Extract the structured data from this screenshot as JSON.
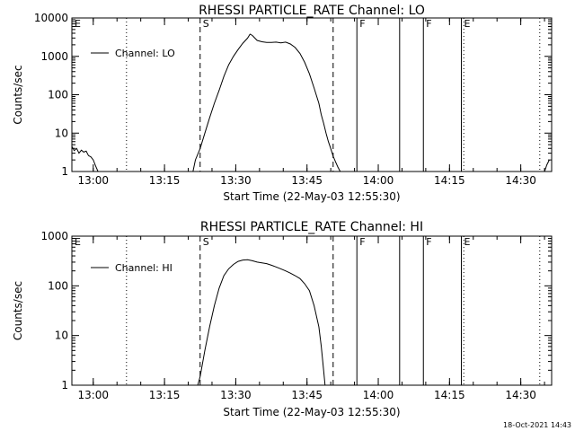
{
  "timestamp": "18-Oct-2021 14:43",
  "chart_data": [
    {
      "type": "line",
      "title": "RHESSI PARTICLE_RATE Channel: LO",
      "ylabel": "Counts/sec",
      "xlabel": "Start Time (22-May-03 12:55:30)",
      "y_scale": "log",
      "ylim": [
        1,
        10000
      ],
      "xlim_minutes_after_start": [
        0,
        101
      ],
      "x_ticks": [
        "13:00",
        "13:15",
        "13:30",
        "13:45",
        "14:00",
        "14:15",
        "14:30"
      ],
      "y_ticks": [
        "1",
        "10",
        "100",
        "1000",
        "10000"
      ],
      "legend": {
        "entries": [
          "Channel: LO"
        ],
        "placement": "top-left"
      },
      "series": [
        {
          "name": "Channel: LO",
          "segments": [
            [
              [
                0,
                4.5
              ],
              [
                0.5,
                3.5
              ],
              [
                1,
                4
              ],
              [
                1.5,
                3
              ],
              [
                2,
                3.6
              ],
              [
                2.5,
                3.2
              ],
              [
                3,
                3.4
              ],
              [
                3.5,
                2.6
              ],
              [
                4,
                2.4
              ],
              [
                4.5,
                2.0
              ],
              [
                5,
                1.4
              ],
              [
                5.5,
                1
              ]
            ],
            [
              [
                25.5,
                1
              ],
              [
                26,
                2
              ],
              [
                27,
                4
              ],
              [
                28,
                10
              ],
              [
                29,
                25
              ],
              [
                30,
                60
              ],
              [
                31,
                130
              ],
              [
                32,
                300
              ],
              [
                33,
                600
              ],
              [
                34,
                1000
              ],
              [
                35,
                1500
              ],
              [
                36,
                2200
              ],
              [
                37,
                3000
              ],
              [
                37.5,
                3800
              ],
              [
                38,
                3500
              ],
              [
                38.5,
                3000
              ],
              [
                39,
                2600
              ],
              [
                40,
                2400
              ],
              [
                41,
                2300
              ],
              [
                42,
                2300
              ],
              [
                43,
                2350
              ],
              [
                44,
                2250
              ],
              [
                45,
                2350
              ],
              [
                46,
                2100
              ],
              [
                47,
                1700
              ],
              [
                48,
                1200
              ],
              [
                49,
                700
              ],
              [
                50,
                350
              ],
              [
                51,
                150
              ],
              [
                52,
                60
              ],
              [
                52.5,
                30
              ],
              [
                53,
                18
              ],
              [
                53.5,
                10
              ],
              [
                54,
                6
              ],
              [
                54.5,
                4
              ],
              [
                55,
                2.5
              ],
              [
                55.5,
                1.8
              ],
              [
                56,
                1.3
              ],
              [
                56.5,
                1
              ]
            ],
            [
              [
                99.5,
                1
              ],
              [
                100,
                1.5
              ],
              [
                100.5,
                2
              ]
            ]
          ]
        }
      ],
      "annotations": [
        {
          "label": "E",
          "x": 0,
          "style": "dotted"
        },
        {
          "label": "",
          "x": 11.5,
          "style": "dotted"
        },
        {
          "label": "S",
          "x": 27,
          "style": "dashed"
        },
        {
          "label": "",
          "x": 55,
          "style": "dashed"
        },
        {
          "label": "F",
          "x": 60,
          "style": "solid"
        },
        {
          "label": "",
          "x": 69,
          "style": "solid"
        },
        {
          "label": "F",
          "x": 74,
          "style": "solid"
        },
        {
          "label": "E",
          "x": 82,
          "style": "solid"
        },
        {
          "label": "",
          "x": 82.5,
          "style": "dotted"
        },
        {
          "label": "",
          "x": 98.5,
          "style": "dotted"
        }
      ]
    },
    {
      "type": "line",
      "title": "RHESSI PARTICLE_RATE Channel: HI",
      "ylabel": "Counts/sec",
      "xlabel": "Start Time (22-May-03 12:55:30)",
      "y_scale": "log",
      "ylim": [
        1,
        1000
      ],
      "xlim_minutes_after_start": [
        0,
        101
      ],
      "x_ticks": [
        "13:00",
        "13:15",
        "13:30",
        "13:45",
        "14:00",
        "14:15",
        "14:30"
      ],
      "y_ticks": [
        "1",
        "10",
        "100",
        "1000"
      ],
      "legend": {
        "entries": [
          "Channel: HI"
        ],
        "placement": "top-left"
      },
      "series": [
        {
          "name": "Channel: HI",
          "segments": [
            [
              [
                26.5,
                1
              ],
              [
                27,
                1.5
              ],
              [
                28,
                5
              ],
              [
                29,
                15
              ],
              [
                30,
                40
              ],
              [
                31,
                90
              ],
              [
                32,
                160
              ],
              [
                33,
                220
              ],
              [
                34,
                270
              ],
              [
                35,
                310
              ],
              [
                36,
                330
              ],
              [
                37,
                335
              ],
              [
                38,
                320
              ],
              [
                39,
                300
              ],
              [
                40,
                290
              ],
              [
                41,
                280
              ],
              [
                42,
                260
              ],
              [
                43,
                240
              ],
              [
                44,
                220
              ],
              [
                45,
                200
              ],
              [
                46,
                180
              ],
              [
                47,
                160
              ],
              [
                48,
                140
              ],
              [
                49,
                110
              ],
              [
                50,
                80
              ],
              [
                51,
                40
              ],
              [
                52,
                15
              ],
              [
                52.5,
                6
              ],
              [
                53,
                2
              ],
              [
                53.3,
                1
              ]
            ]
          ]
        }
      ],
      "annotations": [
        {
          "label": "E",
          "x": 0,
          "style": "dotted"
        },
        {
          "label": "",
          "x": 11.5,
          "style": "dotted"
        },
        {
          "label": "S",
          "x": 27,
          "style": "dashed"
        },
        {
          "label": "",
          "x": 55,
          "style": "dashed"
        },
        {
          "label": "F",
          "x": 60,
          "style": "solid"
        },
        {
          "label": "",
          "x": 69,
          "style": "solid"
        },
        {
          "label": "F",
          "x": 74,
          "style": "solid"
        },
        {
          "label": "E",
          "x": 82,
          "style": "solid"
        },
        {
          "label": "",
          "x": 82.5,
          "style": "dotted"
        },
        {
          "label": "",
          "x": 98.5,
          "style": "dotted"
        }
      ]
    }
  ]
}
